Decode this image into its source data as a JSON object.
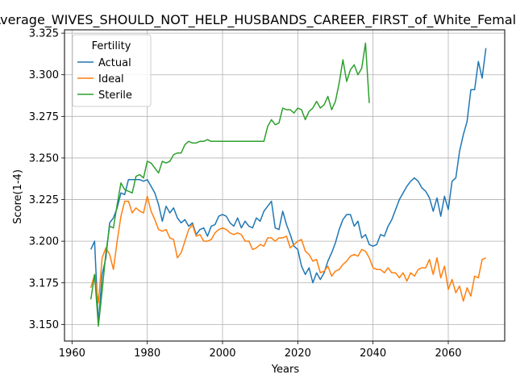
{
  "chart_data": {
    "type": "line",
    "title": "Average_WIVES_SHOULD_NOT_HELP_HUSBANDS_CAREER_FIRST_of_White_Female",
    "xlabel": "Years",
    "ylabel": "Score(1-4)",
    "xlim": [
      1958,
      2075
    ],
    "ylim": [
      3.14,
      3.327
    ],
    "xticks": [
      1960,
      1980,
      2000,
      2020,
      2040,
      2060
    ],
    "yticks": [
      3.15,
      3.175,
      3.2,
      3.225,
      3.25,
      3.275,
      3.3,
      3.325
    ],
    "grid": true,
    "legend": {
      "title": "Fertility",
      "placement": "top-left"
    },
    "series": [
      {
        "name": "Actual",
        "color": "#1f77b4",
        "x": [
          1965,
          1966,
          1967,
          1968,
          1969,
          1970,
          1971,
          1972,
          1973,
          1974,
          1975,
          1976,
          1977,
          1978,
          1979,
          1980,
          1981,
          1982,
          1983,
          1984,
          1985,
          1986,
          1987,
          1988,
          1989,
          1990,
          1991,
          1992,
          1993,
          1994,
          1995,
          1996,
          1997,
          1998,
          1999,
          2000,
          2001,
          2002,
          2003,
          2004,
          2005,
          2006,
          2007,
          2008,
          2009,
          2010,
          2011,
          2012,
          2013,
          2014,
          2015,
          2016,
          2017,
          2018,
          2019,
          2020,
          2021,
          2022,
          2023,
          2024,
          2025,
          2026,
          2027,
          2028,
          2029,
          2030,
          2031,
          2032,
          2033,
          2034,
          2035,
          2036,
          2037,
          2038,
          2039,
          2040,
          2041,
          2042,
          2043,
          2044,
          2045,
          2046,
          2047,
          2048,
          2049,
          2050,
          2051,
          2052,
          2053,
          2054,
          2055,
          2056,
          2057,
          2058,
          2059,
          2060,
          2061,
          2062,
          2063,
          2064,
          2065,
          2066,
          2067,
          2068,
          2069,
          2070
        ],
        "y": [
          3.195,
          3.2,
          3.15,
          3.18,
          3.19,
          3.211,
          3.214,
          3.22,
          3.229,
          3.228,
          3.237,
          3.237,
          3.237,
          3.237,
          3.236,
          3.237,
          3.233,
          3.229,
          3.222,
          3.212,
          3.221,
          3.217,
          3.22,
          3.214,
          3.211,
          3.213,
          3.209,
          3.211,
          3.204,
          3.207,
          3.208,
          3.203,
          3.209,
          3.21,
          3.215,
          3.216,
          3.215,
          3.211,
          3.209,
          3.214,
          3.208,
          3.212,
          3.209,
          3.208,
          3.214,
          3.212,
          3.218,
          3.221,
          3.224,
          3.208,
          3.207,
          3.218,
          3.21,
          3.204,
          3.197,
          3.195,
          3.185,
          3.18,
          3.184,
          3.175,
          3.181,
          3.177,
          3.181,
          3.188,
          3.193,
          3.199,
          3.207,
          3.213,
          3.216,
          3.216,
          3.209,
          3.212,
          3.202,
          3.204,
          3.198,
          3.197,
          3.198,
          3.204,
          3.203,
          3.209,
          3.213,
          3.219,
          3.225,
          3.229,
          3.233,
          3.236,
          3.238,
          3.236,
          3.232,
          3.23,
          3.226,
          3.218,
          3.226,
          3.215,
          3.227,
          3.219,
          3.236,
          3.238,
          3.254,
          3.264,
          3.272,
          3.291,
          3.291,
          3.308,
          3.298,
          3.316
        ]
      },
      {
        "name": "Ideal",
        "color": "#ff7f0e",
        "x": [
          1965,
          1966,
          1967,
          1968,
          1969,
          1970,
          1971,
          1972,
          1973,
          1974,
          1975,
          1976,
          1977,
          1978,
          1979,
          1980,
          1981,
          1982,
          1983,
          1984,
          1985,
          1986,
          1987,
          1988,
          1989,
          1990,
          1991,
          1992,
          1993,
          1994,
          1995,
          1996,
          1997,
          1998,
          1999,
          2000,
          2001,
          2002,
          2003,
          2004,
          2005,
          2006,
          2007,
          2008,
          2009,
          2010,
          2011,
          2012,
          2013,
          2014,
          2015,
          2016,
          2017,
          2018,
          2019,
          2020,
          2021,
          2022,
          2023,
          2024,
          2025,
          2026,
          2027,
          2028,
          2029,
          2030,
          2031,
          2032,
          2033,
          2034,
          2035,
          2036,
          2037,
          2038,
          2039,
          2040,
          2041,
          2042,
          2043,
          2044,
          2045,
          2046,
          2047,
          2048,
          2049,
          2050,
          2051,
          2052,
          2053,
          2054,
          2055,
          2056,
          2057,
          2058,
          2059,
          2060,
          2061,
          2062,
          2063,
          2064,
          2065,
          2066,
          2067,
          2068,
          2069,
          2070
        ],
        "y": [
          3.172,
          3.18,
          3.163,
          3.19,
          3.196,
          3.192,
          3.183,
          3.2,
          3.215,
          3.224,
          3.224,
          3.217,
          3.22,
          3.218,
          3.217,
          3.227,
          3.218,
          3.213,
          3.207,
          3.206,
          3.207,
          3.202,
          3.201,
          3.19,
          3.193,
          3.2,
          3.207,
          3.21,
          3.203,
          3.204,
          3.2,
          3.2,
          3.201,
          3.205,
          3.207,
          3.208,
          3.207,
          3.205,
          3.204,
          3.205,
          3.204,
          3.2,
          3.2,
          3.195,
          3.196,
          3.198,
          3.197,
          3.202,
          3.202,
          3.2,
          3.202,
          3.202,
          3.203,
          3.196,
          3.198,
          3.2,
          3.201,
          3.194,
          3.192,
          3.188,
          3.189,
          3.181,
          3.182,
          3.185,
          3.179,
          3.182,
          3.183,
          3.186,
          3.188,
          3.191,
          3.192,
          3.191,
          3.195,
          3.194,
          3.19,
          3.184,
          3.183,
          3.183,
          3.181,
          3.184,
          3.181,
          3.181,
          3.178,
          3.181,
          3.176,
          3.181,
          3.179,
          3.183,
          3.184,
          3.184,
          3.189,
          3.18,
          3.19,
          3.178,
          3.185,
          3.171,
          3.177,
          3.169,
          3.173,
          3.164,
          3.172,
          3.167,
          3.179,
          3.178,
          3.189,
          3.19
        ]
      },
      {
        "name": "Sterile",
        "color": "#2ca02c",
        "x": [
          1965,
          1966,
          1967,
          1968,
          1969,
          1970,
          1971,
          1972,
          1973,
          1974,
          1975,
          1976,
          1977,
          1978,
          1979,
          1980,
          1981,
          1982,
          1983,
          1984,
          1985,
          1986,
          1987,
          1988,
          1989,
          1990,
          1991,
          1992,
          1993,
          1994,
          1995,
          1996,
          1997,
          1998,
          1999,
          2000,
          2001,
          2002,
          2003,
          2004,
          2005,
          2006,
          2007,
          2008,
          2009,
          2010,
          2011,
          2012,
          2013,
          2014,
          2015,
          2016,
          2017,
          2018,
          2019,
          2020,
          2021,
          2022,
          2023,
          2024,
          2025,
          2026,
          2027,
          2028,
          2029,
          2030,
          2031,
          2032,
          2033,
          2034,
          2035,
          2036,
          2037,
          2038,
          2039
        ],
        "y": [
          3.165,
          3.18,
          3.149,
          3.17,
          3.193,
          3.209,
          3.208,
          3.222,
          3.235,
          3.231,
          3.23,
          3.229,
          3.239,
          3.24,
          3.238,
          3.248,
          3.247,
          3.244,
          3.241,
          3.248,
          3.247,
          3.248,
          3.252,
          3.253,
          3.253,
          3.258,
          3.26,
          3.259,
          3.259,
          3.26,
          3.26,
          3.261,
          3.26,
          3.26,
          3.26,
          3.26,
          3.26,
          3.26,
          3.26,
          3.26,
          3.26,
          3.26,
          3.26,
          3.26,
          3.26,
          3.26,
          3.26,
          3.269,
          3.273,
          3.27,
          3.271,
          3.28,
          3.279,
          3.279,
          3.277,
          3.28,
          3.279,
          3.273,
          3.278,
          3.28,
          3.284,
          3.28,
          3.282,
          3.287,
          3.279,
          3.284,
          3.295,
          3.309,
          3.296,
          3.303,
          3.306,
          3.3,
          3.304,
          3.319,
          3.283
        ]
      }
    ]
  }
}
